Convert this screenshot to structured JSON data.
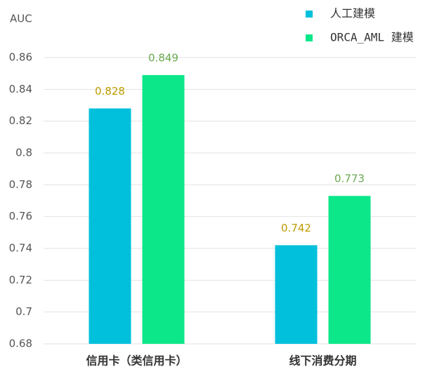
{
  "chart_data": {
    "type": "bar",
    "y_label": "AUC",
    "categories": [
      "信用卡（类信用卡）",
      "线下消费分期"
    ],
    "series": [
      {
        "name": "人工建模",
        "color": "#00c0dc",
        "label_color": "#bf9b00",
        "values": [
          0.828,
          0.742
        ]
      },
      {
        "name": "ORCA_AML 建模",
        "color": "#0ce78a",
        "label_color": "#6aa84f",
        "values": [
          0.849,
          0.773
        ]
      }
    ],
    "ylim": [
      0.68,
      0.86
    ],
    "yticks": [
      0.68,
      0.7,
      0.72,
      0.74,
      0.76,
      0.78,
      0.8,
      0.82,
      0.84,
      0.86
    ],
    "grid": true,
    "legend": "top-right"
  }
}
